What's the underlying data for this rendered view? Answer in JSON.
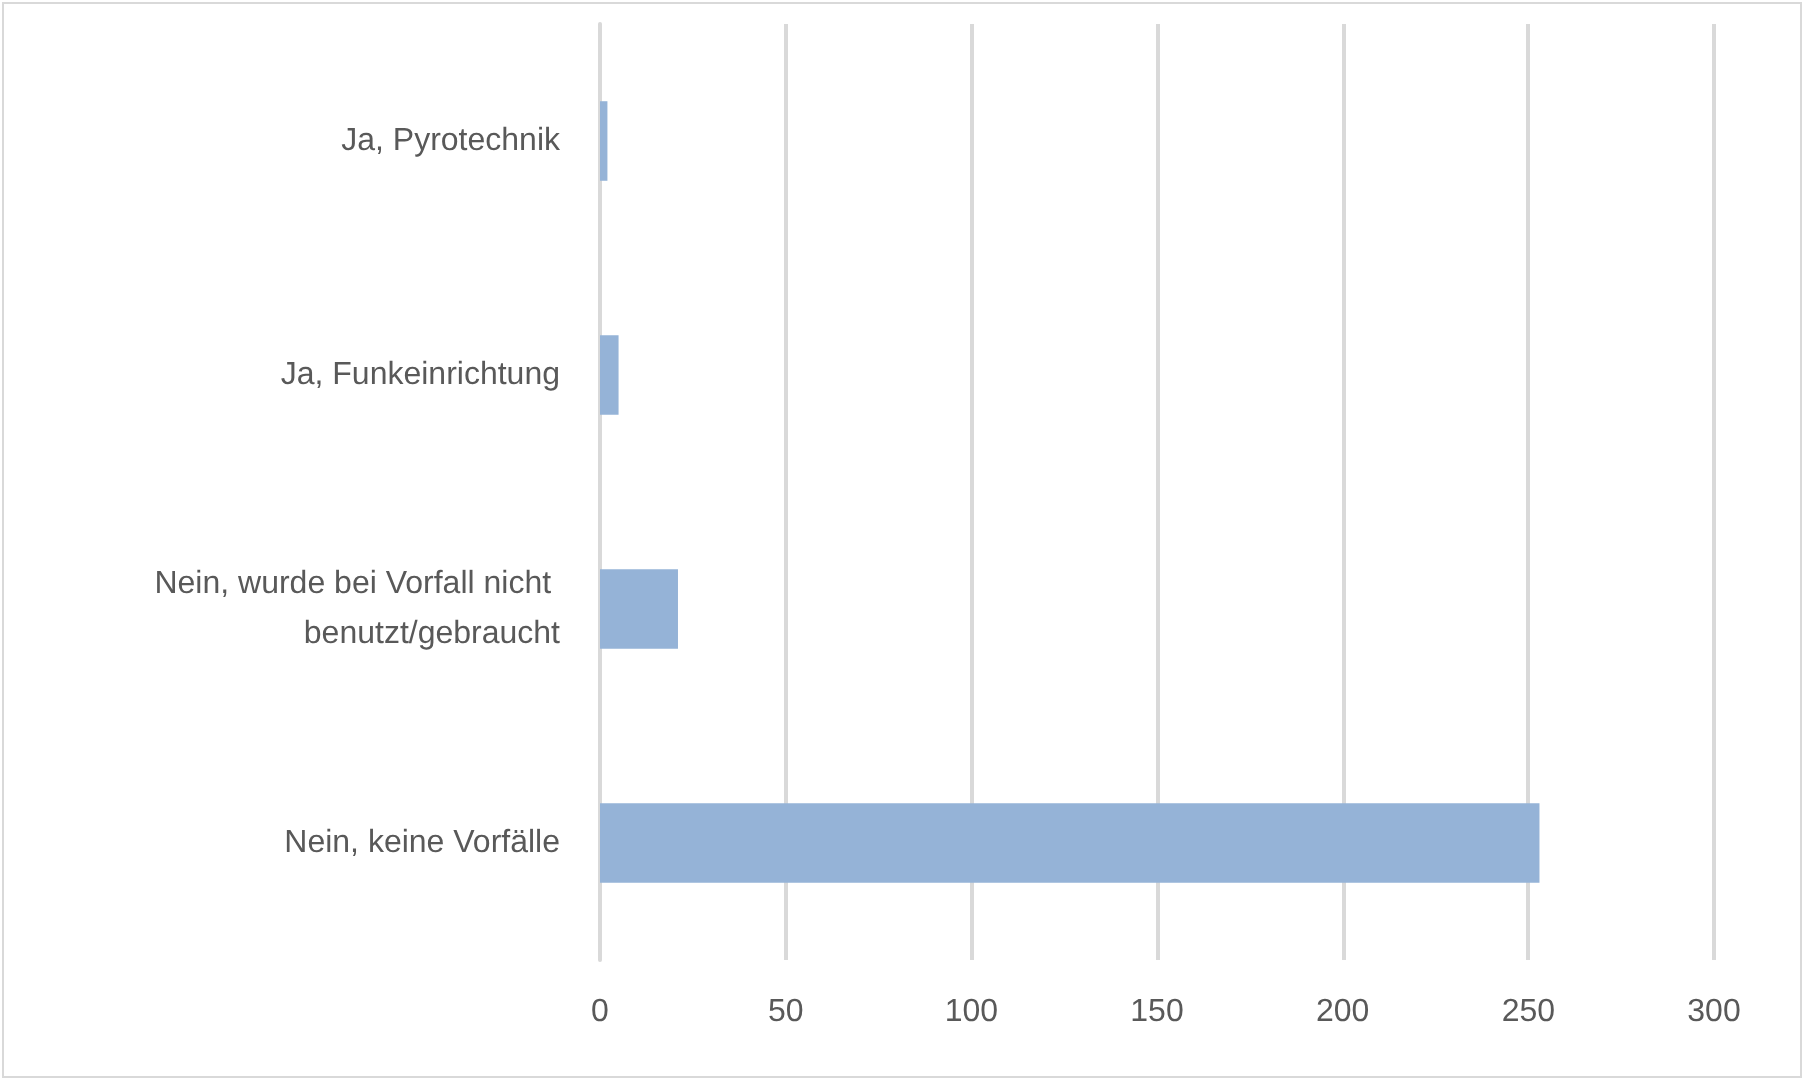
{
  "chart_data": {
    "type": "bar",
    "orientation": "horizontal",
    "categories": [
      "Ja, Pyrotechnik",
      "Ja, Funkeinrichtung",
      "Nein, wurde bei Vorfall nicht benutzt/gebraucht",
      "Nein, keine Vorfälle"
    ],
    "values": [
      2,
      5,
      21,
      253
    ],
    "color": "#95b3d7",
    "xlim": [
      0,
      300
    ],
    "xticks": [
      0,
      50,
      100,
      150,
      200,
      250,
      300
    ],
    "grid": "x"
  }
}
